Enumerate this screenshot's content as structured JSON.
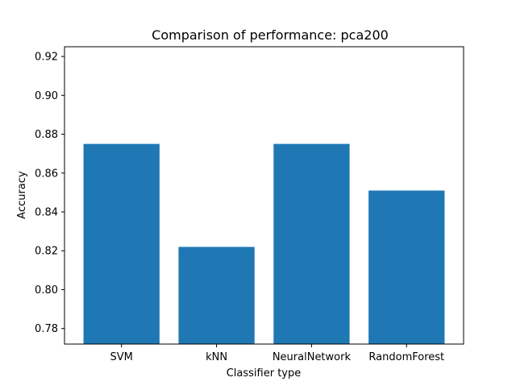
{
  "chart_data": {
    "type": "bar",
    "title": "Comparison of performance: pca200",
    "xlabel": "Classifier type",
    "ylabel": "Accuracy",
    "categories": [
      "SVM",
      "kNN",
      "NeuralNetwork",
      "RandomForest"
    ],
    "values": [
      0.875,
      0.822,
      0.875,
      0.851
    ],
    "ylim": [
      0.772,
      0.925
    ],
    "yticks": [
      0.78,
      0.8,
      0.82,
      0.84,
      0.86,
      0.88,
      0.9,
      0.92
    ],
    "ytick_labels": [
      "0.78",
      "0.80",
      "0.82",
      "0.84",
      "0.86",
      "0.88",
      "0.90",
      "0.92"
    ],
    "bar_color": "#1f77b4",
    "grid": false,
    "legend": "none"
  }
}
